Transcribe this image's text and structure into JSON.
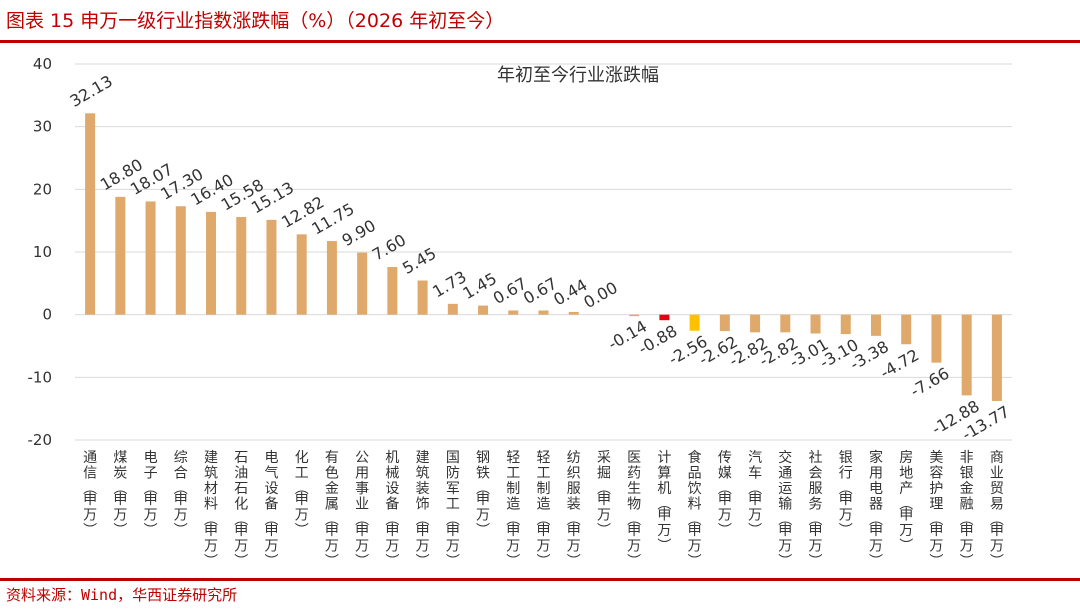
{
  "header": {
    "title": "图表 15 申万一级行业指数涨跌幅（%）（2026 年初至今）"
  },
  "footer": {
    "source": "资料来源：Wind，华西证券研究所"
  },
  "colors": {
    "accent": "#c00000",
    "bar": "#e0a96c",
    "bar_highlight_red": "#e60012",
    "bar_highlight_yellow": "#ffc000"
  },
  "chart_data": {
    "type": "bar",
    "title": "年初至今行业涨跌幅",
    "ylim": [
      -20,
      40
    ],
    "yticks": [
      -20,
      -10,
      0,
      10,
      20,
      30,
      40
    ],
    "grid": true,
    "categories": [
      "通信(申万)",
      "煤炭(申万)",
      "电子(申万)",
      "综合(申万)",
      "建筑材料(申万)",
      "石油石化(申万)",
      "电气设备(申万)",
      "化工(申万)",
      "有色金属(申万)",
      "公用事业(申万)",
      "机械设备(申万)",
      "建筑装饰(申万)",
      "国防军工(申万)",
      "钢铁(申万)",
      "轻工制造(申万)",
      "轻工制造(申万)",
      "纺织服装(申万)",
      "采掘(申万)",
      "医药生物(申万)",
      "计算机(申万)",
      "食品饮料(申万)",
      "传媒(申万)",
      "汽车(申万)",
      "交通运输(申万)",
      "社会服务(申万)",
      "银行(申万)",
      "家用电器(申万)",
      "房地产(申万)",
      "美容护理(申万)",
      "非银金融(申万)",
      "商业贸易(申万)"
    ],
    "values": [
      32.13,
      18.8,
      18.07,
      17.3,
      16.4,
      15.58,
      15.13,
      12.82,
      11.75,
      9.9,
      7.6,
      5.45,
      1.73,
      1.45,
      0.67,
      0.67,
      0.44,
      0.0,
      -0.14,
      -0.88,
      -2.56,
      -2.62,
      -2.82,
      -2.82,
      -3.01,
      -3.1,
      -3.38,
      -4.72,
      -7.66,
      -12.88,
      -13.77
    ],
    "data_labels": [
      "32.13",
      "18.80",
      "18.07",
      "17.30",
      "16.40",
      "15.58",
      "15.13",
      "12.82",
      "11.75",
      "9.90",
      "7.60",
      "5.45",
      "1.73",
      "1.45",
      "0.67",
      "0.67",
      "0.44",
      "0.00",
      "-0.14",
      "-0.88",
      "-2.56",
      "-2.62",
      "-2.82",
      "-2.82",
      "-3.01",
      "-3.10",
      "-3.38",
      "-4.72",
      "-7.66",
      "-12.88",
      "-13.77"
    ],
    "highlight": {
      "19": "red",
      "20": "yellow"
    }
  }
}
